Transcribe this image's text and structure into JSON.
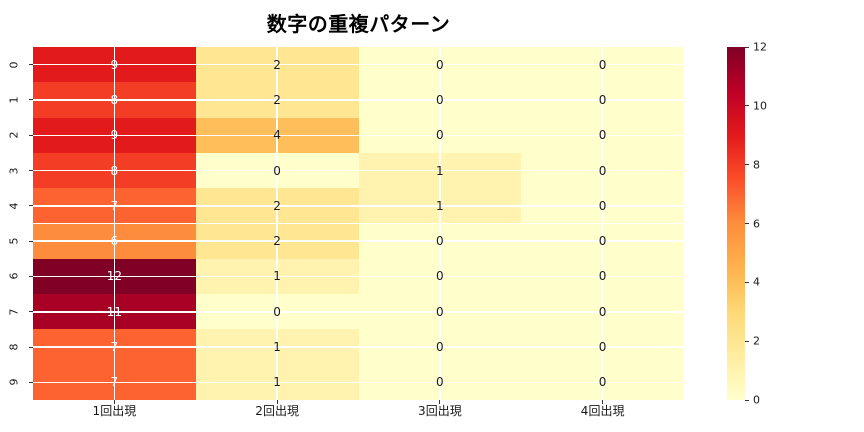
{
  "chart_data": {
    "type": "heatmap",
    "title": "数字の重複パターン",
    "columns": [
      "1回出現",
      "2回出現",
      "3回出現",
      "4回出現"
    ],
    "rows": [
      "0",
      "1",
      "2",
      "3",
      "4",
      "5",
      "6",
      "7",
      "8",
      "9"
    ],
    "values": [
      [
        9,
        2,
        0,
        0
      ],
      [
        8,
        2,
        0,
        0
      ],
      [
        9,
        4,
        0,
        0
      ],
      [
        8,
        0,
        1,
        0
      ],
      [
        7,
        2,
        1,
        0
      ],
      [
        6,
        2,
        0,
        0
      ],
      [
        12,
        1,
        0,
        0
      ],
      [
        11,
        0,
        0,
        0
      ],
      [
        7,
        1,
        0,
        0
      ],
      [
        7,
        1,
        0,
        0
      ]
    ],
    "vmin": 0,
    "vmax": 12,
    "colorbar_ticks": [
      0,
      2,
      4,
      6,
      8,
      10,
      12
    ],
    "colormap_name": "YlOrRd",
    "colormap_stops": [
      "#ffffcc",
      "#ffeda0",
      "#fed976",
      "#feb24c",
      "#fd8d3c",
      "#fc4e2a",
      "#e31a1c",
      "#bd0026",
      "#800026"
    ],
    "gridline_color": "#ffffff",
    "annotation_light_color": "#ffffff",
    "annotation_dark_color": "#1a1a1a",
    "white_text_threshold": 5,
    "legend_position": "right",
    "grid_on": true
  }
}
